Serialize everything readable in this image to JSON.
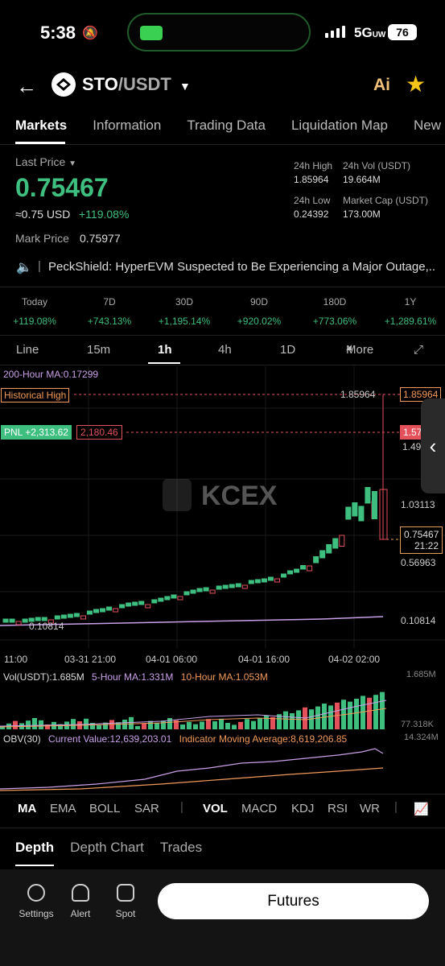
{
  "status": {
    "time": "5:38",
    "network": "5G",
    "network_sub": "UW",
    "battery": "76"
  },
  "header": {
    "base": "STO",
    "quote": "/USDT",
    "ai_label": "Ai"
  },
  "tabs": [
    "Markets",
    "Information",
    "Trading Data",
    "Liquidation Map",
    "New"
  ],
  "ticker": {
    "last_price_label": "Last Price",
    "last_price": "0.75467",
    "usd": "≈0.75 USD",
    "change": "+119.08%",
    "mark_label": "Mark Price",
    "mark_price": "0.75977",
    "high_label": "24h High",
    "high": "1.85964",
    "vol_label": "24h Vol (USDT)",
    "vol": "19.664M",
    "low_label": "24h Low",
    "low": "0.24392",
    "cap_label": "Market Cap (USDT)",
    "cap": "173.00M"
  },
  "news": "PeckShield: HyperEVM Suspected to Be Experiencing a Major Outage,...",
  "performance": [
    {
      "k": "Today",
      "v": "+119.08%"
    },
    {
      "k": "7D",
      "v": "+743.13%"
    },
    {
      "k": "30D",
      "v": "+1,195.14%"
    },
    {
      "k": "90D",
      "v": "+920.02%"
    },
    {
      "k": "180D",
      "v": "+773.06%"
    },
    {
      "k": "1Y",
      "v": "+1,289.61%"
    }
  ],
  "intervals": [
    "Line",
    "15m",
    "1h",
    "4h",
    "1D",
    "More"
  ],
  "chart": {
    "ma_label": "200-Hour MA:0.17299",
    "hist_high_label": "Historical High",
    "hist_high_value": "1.85964",
    "pnl_label": "PNL +2,313.62",
    "pnl_value": "2,180.46",
    "pnl_right": "1.57",
    "watermark": "KCEX",
    "y_labels": [
      "1.49",
      "1.03113",
      "0.56963",
      "0.10814"
    ],
    "low_marker": "0.10814",
    "current_price": "0.75467",
    "countdown": "21:22",
    "x_labels": [
      "11:00",
      "03-31 21:00",
      "04-01 06:00",
      "04-01 16:00",
      "04-02 02:00"
    ],
    "vol_label": "Vol(USDT):1.685M",
    "vol_ma5": "5-Hour MA:1.331M",
    "vol_ma10": "10-Hour MA:1.053M",
    "vol_max": "1.685M",
    "vol_min": "77.318K",
    "obv_label": "OBV(30)",
    "obv_current": "Current Value:12,639,203.01",
    "obv_ma": "Indicator Moving Average:8,619,206.85",
    "obv_max": "14.324M"
  },
  "indicators": [
    "MA",
    "EMA",
    "BOLL",
    "SAR",
    "VOL",
    "MACD",
    "KDJ",
    "RSI",
    "WR"
  ],
  "bottom_tabs": [
    "Depth",
    "Depth Chart",
    "Trades"
  ],
  "footer": {
    "settings": "Settings",
    "alert": "Alert",
    "spot": "Spot",
    "futures": "Futures"
  }
}
